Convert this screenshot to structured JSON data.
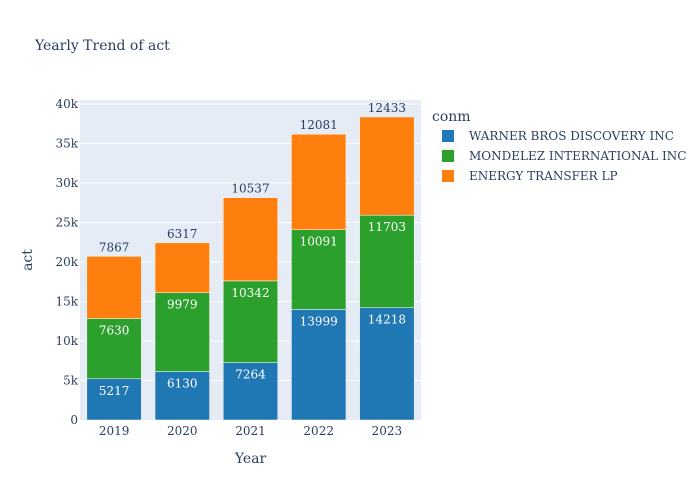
{
  "chart_data": {
    "type": "bar",
    "barmode": "stack",
    "title": "Yearly Trend of act",
    "xlabel": "Year",
    "ylabel": "act",
    "categories": [
      "2019",
      "2020",
      "2021",
      "2022",
      "2023"
    ],
    "ylim": [
      0,
      40500
    ],
    "yticks": [
      0,
      5000,
      10000,
      15000,
      20000,
      25000,
      30000,
      35000,
      40000
    ],
    "ytick_labels": [
      "0",
      "5k",
      "10k",
      "15k",
      "20k",
      "25k",
      "30k",
      "35k",
      "40k"
    ],
    "grid": true,
    "legend_title": "conm",
    "legend_position": "right",
    "series": [
      {
        "name": "WARNER BROS DISCOVERY INC",
        "color": "#1f77b4",
        "values": [
          5217,
          6130,
          7264,
          13999,
          14218
        ]
      },
      {
        "name": "MONDELEZ INTERNATIONAL INC",
        "color": "#2ca02c",
        "values": [
          7630,
          9979,
          10342,
          10091,
          11703
        ]
      },
      {
        "name": "ENERGY TRANSFER LP",
        "color": "#ff7f0e",
        "values": [
          7867,
          6317,
          10537,
          12081,
          12433
        ]
      }
    ]
  }
}
